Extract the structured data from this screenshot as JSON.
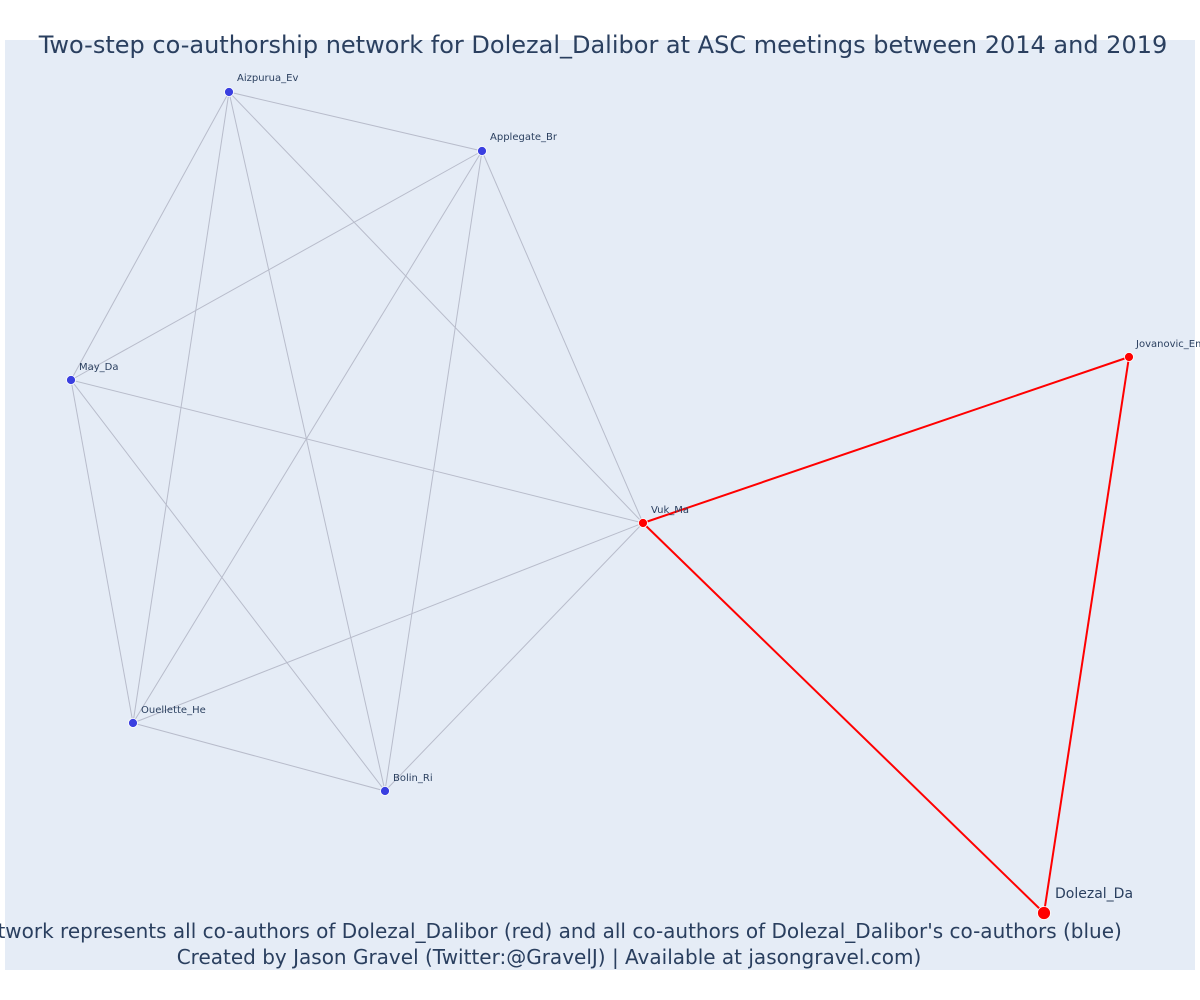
{
  "title": "Two-step co-authorship network for Dolezal_Dalibor at ASC meetings between 2014 and 2019",
  "caption": {
    "line1": "Network represents all co-authors of Dolezal_Dalibor (red) and all co-authors of Dolezal_Dalibor's co-authors (blue)",
    "line2": "Created by Jason Gravel (Twitter:@GravelJ) | Available at jasongravel.com)"
  },
  "colors": {
    "plot_background": "#e5ecf6",
    "direct_coauthor": "#ff0000",
    "second_step_coauthor": "#3a3fe0",
    "direct_edge": "#ff0000",
    "second_step_edge": "#b8bccb",
    "text": "#2a3f5f"
  },
  "nodes": [
    {
      "id": "aizpurua",
      "label": "Aizpurua_Ev",
      "group": "second_step"
    },
    {
      "id": "applegate",
      "label": "Applegate_Br",
      "group": "second_step"
    },
    {
      "id": "may",
      "label": "May_Da",
      "group": "second_step"
    },
    {
      "id": "vuk",
      "label": "Vuk_Ma",
      "group": "direct"
    },
    {
      "id": "jovanovic",
      "label": "Jovanovic_Em",
      "group": "direct"
    },
    {
      "id": "ouellette",
      "label": "Ouellette_He",
      "group": "second_step"
    },
    {
      "id": "bolin",
      "label": "Bolin_Ri",
      "group": "second_step"
    },
    {
      "id": "dolezal",
      "label": "Dolezal_Da",
      "group": "focal"
    }
  ],
  "edges": [
    {
      "source": "aizpurua",
      "target": "applegate",
      "type": "second_step"
    },
    {
      "source": "aizpurua",
      "target": "may",
      "type": "second_step"
    },
    {
      "source": "aizpurua",
      "target": "ouellette",
      "type": "second_step"
    },
    {
      "source": "aizpurua",
      "target": "bolin",
      "type": "second_step"
    },
    {
      "source": "aizpurua",
      "target": "vuk",
      "type": "second_step"
    },
    {
      "source": "applegate",
      "target": "may",
      "type": "second_step"
    },
    {
      "source": "applegate",
      "target": "ouellette",
      "type": "second_step"
    },
    {
      "source": "applegate",
      "target": "bolin",
      "type": "second_step"
    },
    {
      "source": "applegate",
      "target": "vuk",
      "type": "second_step"
    },
    {
      "source": "may",
      "target": "vuk",
      "type": "second_step"
    },
    {
      "source": "may",
      "target": "ouellette",
      "type": "second_step"
    },
    {
      "source": "may",
      "target": "bolin",
      "type": "second_step"
    },
    {
      "source": "ouellette",
      "target": "vuk",
      "type": "second_step"
    },
    {
      "source": "ouellette",
      "target": "bolin",
      "type": "second_step"
    },
    {
      "source": "bolin",
      "target": "vuk",
      "type": "second_step"
    },
    {
      "source": "vuk",
      "target": "jovanovic",
      "type": "direct"
    },
    {
      "source": "vuk",
      "target": "dolezal",
      "type": "direct"
    },
    {
      "source": "jovanovic",
      "target": "dolezal",
      "type": "direct"
    }
  ]
}
